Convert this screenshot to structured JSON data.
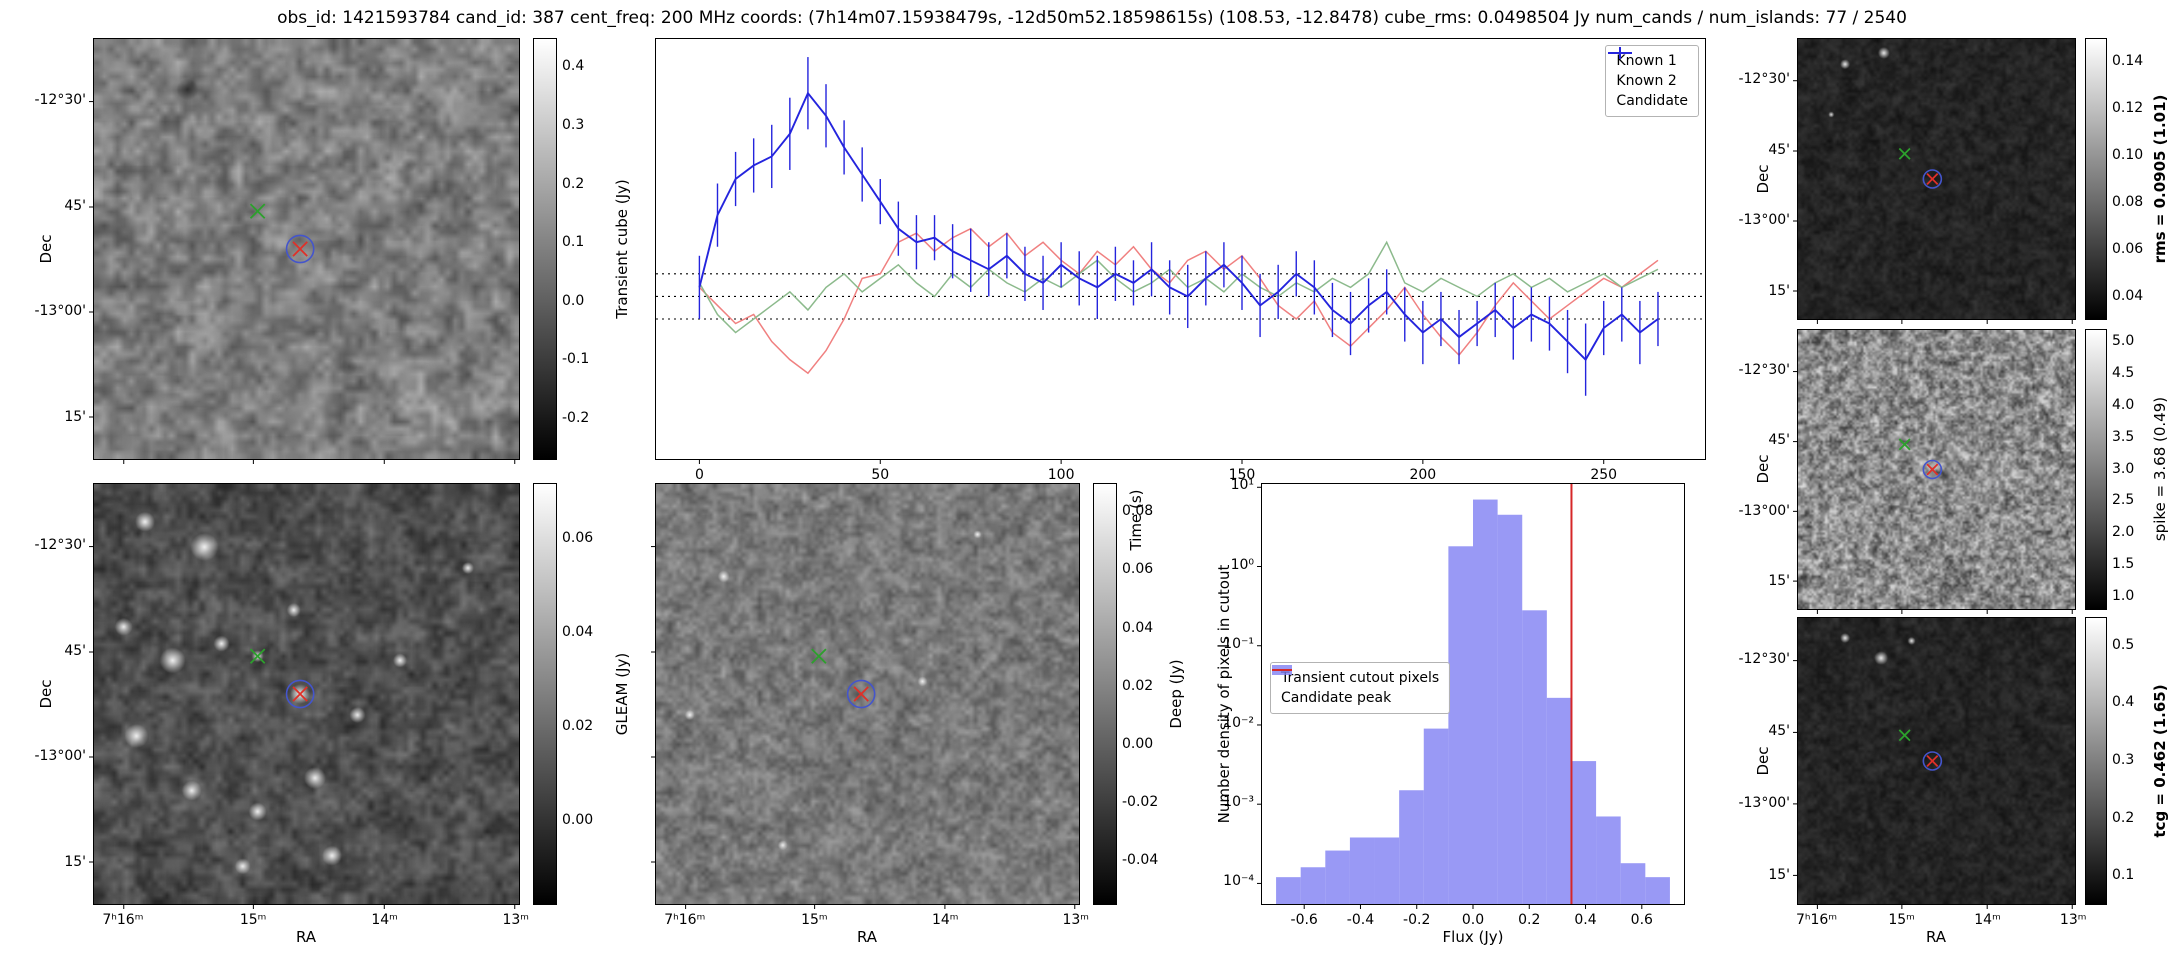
{
  "title": "obs_id: 1421593784 cand_id: 387 cent_freq: 200 MHz coords: (7h14m07.15938479s, -12d50m52.18598615s) (108.53, -12.8478) cube_rms: 0.0498504 Jy num_cands / num_islands: 77 / 2540",
  "axis_labels": {
    "dec": "Dec",
    "ra": "RA"
  },
  "sky_ticks": {
    "dec": [
      "-12°30'",
      "45'",
      "-13°00'",
      "15'"
    ],
    "ra": [
      "7ʰ16ᵐ",
      "15ᵐ",
      "14ᵐ",
      "13ᵐ"
    ]
  },
  "panels": {
    "transient_cutout": {
      "colorbar_label": "Transient cube (Jy)",
      "colorbar_ticks": [
        "0.4",
        "0.3",
        "0.2",
        "0.1",
        "0.0",
        "-0.1",
        "-0.2"
      ],
      "vmin": -0.27,
      "vmax": 0.45,
      "bold": false
    },
    "gleam_cutout": {
      "colorbar_label": "GLEAM (Jy)",
      "colorbar_ticks": [
        "0.06",
        "0.04",
        "0.02",
        "0.00"
      ],
      "vmin": -0.018,
      "vmax": 0.072,
      "bold": false
    },
    "deep_cutout": {
      "colorbar_label": "Deep (Jy)",
      "colorbar_ticks": [
        "0.08",
        "0.06",
        "0.04",
        "0.02",
        "0.00",
        "-0.02",
        "-0.04"
      ],
      "vmin": -0.055,
      "vmax": 0.09,
      "bold": false
    },
    "rms_cutout": {
      "colorbar_label": "rms = 0.0905 (1.01)",
      "colorbar_ticks": [
        "0.14",
        "0.12",
        "0.10",
        "0.08",
        "0.06",
        "0.04"
      ],
      "vmin": 0.03,
      "vmax": 0.15,
      "bold": true
    },
    "spike_cutout": {
      "colorbar_label": "spike = 3.68 (0.49)",
      "colorbar_ticks": [
        "5.0",
        "4.5",
        "4.0",
        "3.5",
        "3.0",
        "2.5",
        "2.0",
        "1.5",
        "1.0"
      ],
      "vmin": 0.8,
      "vmax": 5.2,
      "bold": false
    },
    "tcg_cutout": {
      "colorbar_label": "tcg = 0.462 (1.65)",
      "colorbar_ticks": [
        "0.5",
        "0.4",
        "0.3",
        "0.2",
        "0.1"
      ],
      "vmin": 0.05,
      "vmax": 0.55,
      "bold": true
    }
  },
  "markers": {
    "known_color": "#2ca02c",
    "candidate_color": "#e03028",
    "ring_color": "#4455cc"
  },
  "chart_data": [
    {
      "type": "line",
      "title": "",
      "xlabel": "Time (s)",
      "ylabel": "",
      "xlim": [
        -12,
        278
      ],
      "ylim": [
        -0.36,
        0.57
      ],
      "x_ticks": [
        0,
        50,
        100,
        150,
        200,
        250
      ],
      "hlines": [
        0.05,
        0.0,
        -0.05
      ],
      "legend_position": "upper right",
      "x": [
        0,
        5,
        10,
        15,
        20,
        25,
        30,
        35,
        40,
        45,
        50,
        55,
        60,
        65,
        70,
        75,
        80,
        85,
        90,
        95,
        100,
        105,
        110,
        115,
        120,
        125,
        130,
        135,
        140,
        145,
        150,
        155,
        160,
        165,
        170,
        175,
        180,
        185,
        190,
        195,
        200,
        205,
        210,
        215,
        220,
        225,
        230,
        235,
        240,
        245,
        250,
        255,
        260,
        265
      ],
      "series": [
        {
          "name": "Known 1",
          "color": "#f08080",
          "values": [
            0.02,
            -0.02,
            -0.06,
            -0.04,
            -0.1,
            -0.14,
            -0.17,
            -0.12,
            -0.05,
            0.04,
            0.05,
            0.12,
            0.14,
            0.1,
            0.13,
            0.15,
            0.11,
            0.14,
            0.09,
            0.12,
            0.08,
            0.05,
            0.1,
            0.07,
            0.11,
            0.06,
            0.03,
            0.08,
            0.1,
            0.06,
            0.09,
            0.04,
            -0.02,
            -0.05,
            -0.01,
            -0.08,
            -0.11,
            -0.07,
            -0.03,
            0.02,
            -0.04,
            -0.09,
            -0.13,
            -0.08,
            -0.02,
            0.03,
            -0.01,
            -0.05,
            -0.02,
            0.01,
            0.04,
            0.02,
            0.05,
            0.08
          ]
        },
        {
          "name": "Known 2",
          "color": "#8cba8c",
          "values": [
            0.03,
            -0.04,
            -0.08,
            -0.05,
            -0.02,
            0.01,
            -0.03,
            0.02,
            0.05,
            0.01,
            0.04,
            0.07,
            0.03,
            0.0,
            0.05,
            0.02,
            0.06,
            0.03,
            0.01,
            0.04,
            0.02,
            0.05,
            0.08,
            0.04,
            0.01,
            0.03,
            0.06,
            0.02,
            0.04,
            0.01,
            0.05,
            0.02,
            0.0,
            0.03,
            0.01,
            0.04,
            0.02,
            0.05,
            0.12,
            0.03,
            0.01,
            0.04,
            0.02,
            0.0,
            0.03,
            0.05,
            0.02,
            0.04,
            0.01,
            0.03,
            0.05,
            0.02,
            0.04,
            0.06
          ]
        },
        {
          "name": "Candidate",
          "color": "#2424dd",
          "values": [
            0.02,
            0.18,
            0.26,
            0.29,
            0.31,
            0.36,
            0.45,
            0.4,
            0.33,
            0.27,
            0.21,
            0.15,
            0.12,
            0.13,
            0.1,
            0.08,
            0.06,
            0.09,
            0.05,
            0.03,
            0.07,
            0.04,
            0.02,
            0.05,
            0.03,
            0.06,
            0.02,
            0.0,
            0.04,
            0.07,
            0.03,
            -0.02,
            0.01,
            0.05,
            0.02,
            -0.03,
            -0.06,
            -0.02,
            0.01,
            -0.04,
            -0.08,
            -0.05,
            -0.09,
            -0.06,
            -0.03,
            -0.07,
            -0.04,
            -0.06,
            -0.1,
            -0.14,
            -0.07,
            -0.04,
            -0.08,
            -0.05
          ],
          "errors": [
            0.07,
            0.07,
            0.06,
            0.06,
            0.07,
            0.08,
            0.08,
            0.07,
            0.06,
            0.06,
            0.05,
            0.06,
            0.06,
            0.05,
            0.06,
            0.07,
            0.06,
            0.05,
            0.06,
            0.06,
            0.05,
            0.06,
            0.07,
            0.06,
            0.05,
            0.06,
            0.06,
            0.07,
            0.06,
            0.05,
            0.06,
            0.07,
            0.06,
            0.05,
            0.06,
            0.06,
            0.07,
            0.06,
            0.05,
            0.06,
            0.07,
            0.06,
            0.06,
            0.05,
            0.06,
            0.07,
            0.06,
            0.06,
            0.07,
            0.08,
            0.06,
            0.06,
            0.07,
            0.06
          ]
        }
      ]
    },
    {
      "type": "bar",
      "title": "",
      "xlabel": "Flux (Jy)",
      "ylabel": "Number density of pixels in cutout",
      "y_scale": "log",
      "xlim": [
        -0.75,
        0.75
      ],
      "ylim": [
        5.5e-05,
        11
      ],
      "x_ticks": [
        -0.6,
        -0.4,
        -0.2,
        0.0,
        0.2,
        0.4,
        0.6
      ],
      "y_ticks": [
        "10¹",
        "10⁰",
        "10⁻¹",
        "10⁻²",
        "10⁻³",
        "10⁻⁴"
      ],
      "y_tick_values": [
        10,
        1,
        0.1,
        0.01,
        0.001,
        0.0001
      ],
      "bin_edges": [
        -0.7,
        -0.6125,
        -0.525,
        -0.4375,
        -0.35,
        -0.2625,
        -0.175,
        -0.0875,
        0.0,
        0.0875,
        0.175,
        0.2625,
        0.35,
        0.4375,
        0.525,
        0.6125,
        0.7
      ],
      "densities": [
        0.00012,
        0.00016,
        0.00026,
        0.00038,
        0.00038,
        0.0015,
        0.009,
        1.8,
        7.0,
        4.5,
        0.28,
        0.022,
        0.0035,
        0.0007,
        0.00018,
        0.00012
      ],
      "bar_color": "#7c7cf2",
      "vline": {
        "x": 0.35,
        "color": "#d62728"
      },
      "legend": [
        "Transient cutout pixels",
        "Candidate peak"
      ],
      "legend_position": "center left"
    }
  ]
}
